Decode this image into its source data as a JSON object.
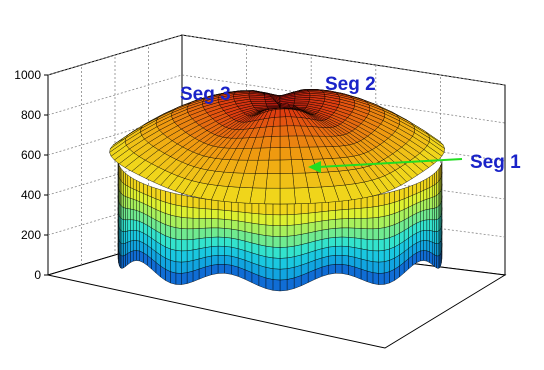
{
  "chart_data": {
    "type": "surface3d",
    "title": "",
    "xlabel": "",
    "ylabel": "",
    "zlabel": "",
    "zlim": [
      0,
      1000
    ],
    "z_ticks": [
      "0",
      "200",
      "400",
      "600",
      "800",
      "1000"
    ],
    "grid": true,
    "colormap": [
      "#1030c8",
      "#10a0e0",
      "#20e0e0",
      "#90f070",
      "#f0f020",
      "#f0a010",
      "#e04010",
      "#b01010"
    ],
    "peak_value": 850,
    "annotations": [
      {
        "id": "seg1",
        "text": "Seg 1",
        "arrow": true,
        "arrow_color": "#22dd22"
      },
      {
        "id": "seg2",
        "text": "Seg 2",
        "arrow": false
      },
      {
        "id": "seg3",
        "text": "Seg 3",
        "arrow": false
      }
    ],
    "annotation_color": "#1a23c8"
  }
}
